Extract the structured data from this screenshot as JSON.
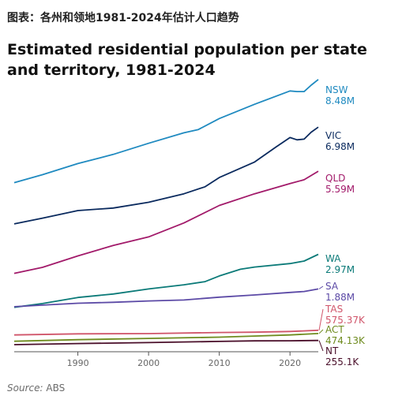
{
  "caption": "图表：各州和领地1981-2024年估计人口趋势",
  "title": "Estimated residential population per state and territory, 1981-2024",
  "source": {
    "label": "Source:",
    "value": "ABS"
  },
  "chart_data": {
    "type": "line",
    "title": "Estimated residential population per state and territory, 1981-2024",
    "xlabel": "",
    "ylabel": "",
    "x_ticks": [
      1990,
      2000,
      2010,
      2020
    ],
    "xlim": [
      1981,
      2024
    ],
    "ylim": [
      0,
      8500000
    ],
    "y_axis_visible": false,
    "grid": false,
    "legend": "end-labels",
    "series": [
      {
        "name": "NSW",
        "end_label": "8.48M",
        "color": "#1f8ac0",
        "points": [
          [
            1981,
            5230000
          ],
          [
            1985,
            5480000
          ],
          [
            1990,
            5830000
          ],
          [
            1995,
            6120000
          ],
          [
            2000,
            6470000
          ],
          [
            2005,
            6800000
          ],
          [
            2007,
            6900000
          ],
          [
            2010,
            7250000
          ],
          [
            2015,
            7700000
          ],
          [
            2020,
            8120000
          ],
          [
            2021,
            8100000
          ],
          [
            2022,
            8100000
          ],
          [
            2023,
            8300000
          ],
          [
            2024,
            8480000
          ]
        ]
      },
      {
        "name": "VIC",
        "end_label": "6.98M",
        "color": "#0a2a5e",
        "points": [
          [
            1981,
            3930000
          ],
          [
            1985,
            4110000
          ],
          [
            1990,
            4350000
          ],
          [
            1995,
            4430000
          ],
          [
            2000,
            4610000
          ],
          [
            2005,
            4880000
          ],
          [
            2008,
            5100000
          ],
          [
            2010,
            5390000
          ],
          [
            2015,
            5880000
          ],
          [
            2018,
            6350000
          ],
          [
            2020,
            6650000
          ],
          [
            2021,
            6580000
          ],
          [
            2022,
            6600000
          ],
          [
            2023,
            6820000
          ],
          [
            2024,
            6980000
          ]
        ]
      },
      {
        "name": "QLD",
        "end_label": "5.59M",
        "color": "#a21a6a",
        "points": [
          [
            1981,
            2370000
          ],
          [
            1985,
            2560000
          ],
          [
            1990,
            2920000
          ],
          [
            1995,
            3250000
          ],
          [
            2000,
            3520000
          ],
          [
            2005,
            3960000
          ],
          [
            2010,
            4510000
          ],
          [
            2015,
            4880000
          ],
          [
            2020,
            5200000
          ],
          [
            2022,
            5320000
          ],
          [
            2024,
            5590000
          ]
        ]
      },
      {
        "name": "WA",
        "end_label": "2.97M",
        "color": "#0b7a78",
        "points": [
          [
            1981,
            1300000
          ],
          [
            1985,
            1420000
          ],
          [
            1990,
            1610000
          ],
          [
            1995,
            1720000
          ],
          [
            2000,
            1880000
          ],
          [
            2005,
            2010000
          ],
          [
            2008,
            2110000
          ],
          [
            2010,
            2290000
          ],
          [
            2013,
            2500000
          ],
          [
            2015,
            2570000
          ],
          [
            2020,
            2680000
          ],
          [
            2022,
            2760000
          ],
          [
            2024,
            2970000
          ]
        ]
      },
      {
        "name": "SA",
        "end_label": "1.88M",
        "color": "#5c4aa6",
        "points": [
          [
            1981,
            1320000
          ],
          [
            1985,
            1370000
          ],
          [
            1990,
            1430000
          ],
          [
            1995,
            1460000
          ],
          [
            2000,
            1500000
          ],
          [
            2005,
            1530000
          ],
          [
            2010,
            1620000
          ],
          [
            2015,
            1690000
          ],
          [
            2020,
            1770000
          ],
          [
            2022,
            1800000
          ],
          [
            2024,
            1880000
          ]
        ]
      },
      {
        "name": "TAS",
        "end_label": "575.37K",
        "color": "#d0556a",
        "points": [
          [
            1981,
            430000
          ],
          [
            1990,
            465000
          ],
          [
            2000,
            472000
          ],
          [
            2010,
            508000
          ],
          [
            2015,
            518000
          ],
          [
            2020,
            540000
          ],
          [
            2024,
            575370
          ]
        ]
      },
      {
        "name": "ACT",
        "end_label": "474.13K",
        "color": "#6e8b1e",
        "points": [
          [
            1981,
            230000
          ],
          [
            1990,
            280000
          ],
          [
            2000,
            320000
          ],
          [
            2010,
            360000
          ],
          [
            2015,
            395000
          ],
          [
            2020,
            431000
          ],
          [
            2024,
            474130
          ]
        ]
      },
      {
        "name": "NT",
        "end_label": "255.1K",
        "color": "#4a0f2a",
        "points": [
          [
            1981,
            125000
          ],
          [
            1990,
            160000
          ],
          [
            2000,
            190000
          ],
          [
            2010,
            225000
          ],
          [
            2015,
            243000
          ],
          [
            2020,
            246000
          ],
          [
            2024,
            255100
          ]
        ]
      }
    ]
  }
}
